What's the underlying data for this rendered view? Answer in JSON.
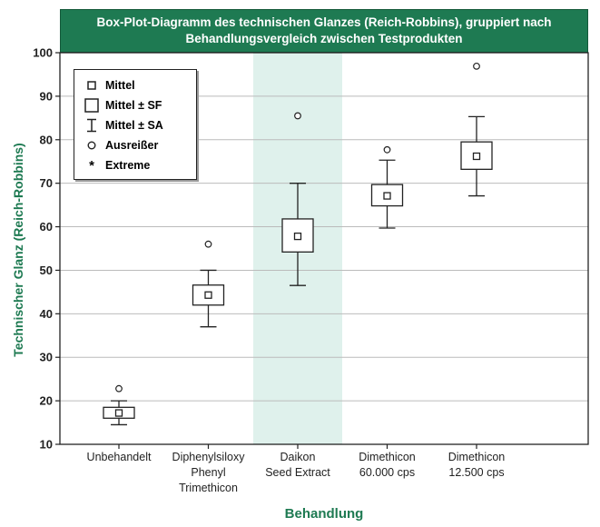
{
  "chart_data": {
    "type": "box",
    "title_line1": "Box-Plot-Diagramm des technischen Glanzes (Reich-Robbins), gruppiert nach",
    "title_line2": "Behandlungsvergleich zwischen Testprodukten",
    "xlabel": "Behandlung",
    "ylabel": "Technischer Glanz (Reich-Robbins)",
    "ylim": [
      10,
      100
    ],
    "yticks": [
      10,
      20,
      30,
      40,
      50,
      60,
      70,
      80,
      90,
      100
    ],
    "grid": true,
    "legend_placement": "top-left",
    "highlighted_category_index": 2,
    "colors": {
      "title_bg": "#1e7a52",
      "axis_label": "#1e7a52",
      "highlight_band": "#dff1ec",
      "grid": "#bbbbbb",
      "box_stroke": "#222222"
    },
    "legend": [
      {
        "symbol": "square-small",
        "label": "Mittel"
      },
      {
        "symbol": "square-large",
        "label": "Mittel ± SF"
      },
      {
        "symbol": "whisker",
        "label": "Mittel ± SA"
      },
      {
        "symbol": "circle",
        "label": "Ausreißer"
      },
      {
        "symbol": "star",
        "label": "Extreme"
      }
    ],
    "categories": [
      {
        "lines": [
          "Unbehandelt"
        ],
        "mean": 17.2,
        "se_low": 16.0,
        "se_high": 18.5,
        "sd_low": 14.5,
        "sd_high": 20.0,
        "outliers": [
          22.8
        ]
      },
      {
        "lines": [
          "Diphenylsiloxy",
          "Phenyl",
          "Trimethicon"
        ],
        "mean": 44.3,
        "se_low": 42.0,
        "se_high": 46.6,
        "sd_low": 37.0,
        "sd_high": 50.0,
        "outliers": [
          56.0
        ]
      },
      {
        "lines": [
          "Daikon",
          "Seed Extract"
        ],
        "mean": 57.8,
        "se_low": 54.2,
        "se_high": 61.8,
        "sd_low": 46.5,
        "sd_high": 70.0,
        "outliers": [
          85.5
        ]
      },
      {
        "lines": [
          "Dimethicon",
          "60.000 cps"
        ],
        "mean": 67.1,
        "se_low": 64.8,
        "se_high": 69.7,
        "sd_low": 59.7,
        "sd_high": 75.3,
        "outliers": [
          77.7
        ]
      },
      {
        "lines": [
          "Dimethicon",
          "12.500 cps"
        ],
        "mean": 76.2,
        "se_low": 73.2,
        "se_high": 79.5,
        "sd_low": 67.1,
        "sd_high": 85.3,
        "outliers": [
          96.9
        ]
      }
    ]
  }
}
